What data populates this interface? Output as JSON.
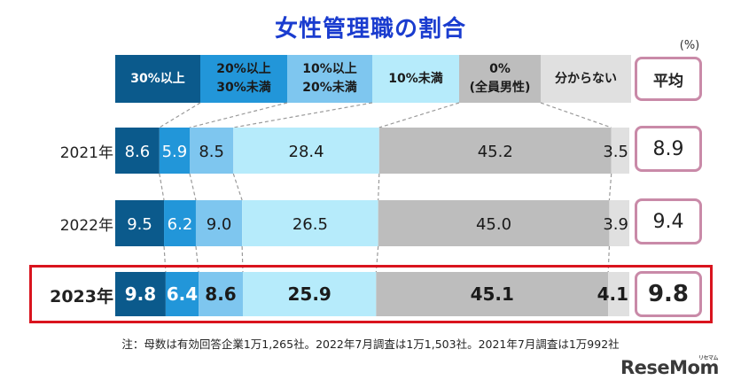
{
  "title": "女性管理職の割合",
  "unit": "(%)",
  "avg_header": "平均",
  "colors": {
    "title": "#1a3ccf",
    "s1": "#0b5a8c",
    "s2": "#2296d9",
    "s3": "#7ec6ef",
    "s4": "#b6ebfb",
    "s5": "#bdbdbd",
    "s6": "#e0e0e0",
    "avg_border": "#c98aa8",
    "highlight": "#d9141e"
  },
  "chart_data": {
    "type": "bar",
    "orientation": "horizontal",
    "stacked": true,
    "categories": [
      "2021年",
      "2022年",
      "2023年"
    ],
    "series": [
      {
        "name": "30%以上",
        "values": [
          8.6,
          9.5,
          9.8
        ]
      },
      {
        "name": "20%以上\n30%未満",
        "values": [
          5.9,
          6.2,
          6.4
        ]
      },
      {
        "name": "10%以上\n20%未満",
        "values": [
          8.5,
          9.0,
          8.6
        ]
      },
      {
        "name": "10%未満",
        "values": [
          28.4,
          26.5,
          25.9
        ]
      },
      {
        "name": "0%\n(全員男性)",
        "values": [
          45.2,
          45.0,
          45.1
        ]
      },
      {
        "name": "分からない",
        "values": [
          3.5,
          3.9,
          4.1
        ]
      }
    ],
    "averages": [
      "8.9",
      "9.4",
      "9.8"
    ],
    "value_labels": [
      [
        "8.6",
        "5.9",
        "8.5",
        "28.4",
        "45.2",
        "3.5"
      ],
      [
        "9.5",
        "6.2",
        "9.0",
        "26.5",
        "45.0",
        "3.9"
      ],
      [
        "9.8",
        "6.4",
        "8.6",
        "25.9",
        "45.1",
        "4.1"
      ]
    ],
    "highlighted_category": "2023年",
    "legend_position": "top"
  },
  "note": "注：母数は有効回答企業1万1,265社。2022年7月調査は1万1,503社。2021年7月調査は1万992社",
  "logo": "ReseMom",
  "logo_sub": "リセマム"
}
